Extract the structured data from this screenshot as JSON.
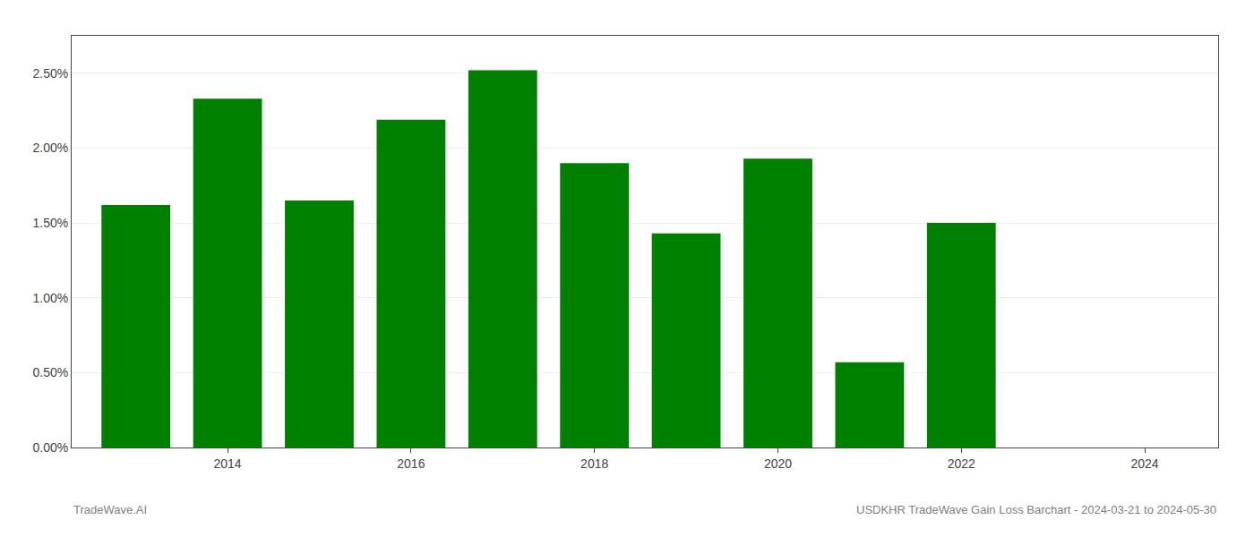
{
  "chart_data": {
    "type": "bar",
    "x": [
      2013,
      2014,
      2015,
      2016,
      2017,
      2018,
      2019,
      2020,
      2021,
      2022
    ],
    "values": [
      1.62,
      2.33,
      1.65,
      2.19,
      2.52,
      1.9,
      1.43,
      1.93,
      0.57,
      1.5
    ],
    "color": "#008000",
    "xlim": [
      2012.3,
      2024.8
    ],
    "xticks": [
      2014,
      2016,
      2018,
      2020,
      2022,
      2024
    ],
    "ylim": [
      0,
      2.75
    ],
    "yticks": [
      {
        "value": 0.0,
        "label": "0.00%"
      },
      {
        "value": 0.5,
        "label": "0.50%"
      },
      {
        "value": 1.0,
        "label": "1.00%"
      },
      {
        "value": 1.5,
        "label": "1.50%"
      },
      {
        "value": 2.0,
        "label": "2.00%"
      },
      {
        "value": 2.5,
        "label": "2.50%"
      }
    ],
    "grid": true,
    "annotations": [
      "TradeWave.AI",
      "USDKHR TradeWave Gain Loss Barchart - 2024-03-21 to 2024-05-30"
    ]
  }
}
